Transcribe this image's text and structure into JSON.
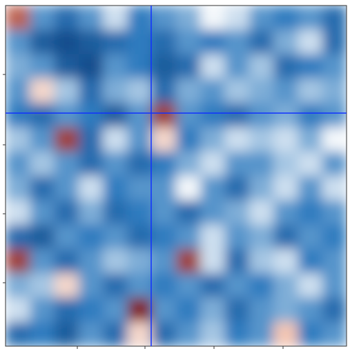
{
  "chart_data": {
    "type": "heatmap",
    "zlim": [
      0,
      1
    ],
    "colorscale": [
      "#08306b",
      "#2f7bbf",
      "#f4f8fb",
      "#f4a582",
      "#67000d"
    ],
    "z": [
      [
        0.85,
        0.3,
        0.2,
        0.3,
        0.45,
        0.25,
        0.3,
        0.35,
        0.5,
        0.45,
        0.3,
        0.25,
        0.3,
        0.2
      ],
      [
        0.3,
        0.15,
        0.1,
        0.15,
        0.2,
        0.25,
        0.2,
        0.3,
        0.25,
        0.3,
        0.2,
        0.35,
        0.45,
        0.2
      ],
      [
        0.35,
        0.3,
        0.15,
        0.1,
        0.3,
        0.25,
        0.15,
        0.2,
        0.45,
        0.3,
        0.4,
        0.2,
        0.25,
        0.3
      ],
      [
        0.3,
        0.6,
        0.4,
        0.2,
        0.35,
        0.4,
        0.2,
        0.35,
        0.3,
        0.4,
        0.35,
        0.3,
        0.4,
        0.35
      ],
      [
        0.25,
        0.2,
        0.3,
        0.25,
        0.15,
        0.3,
        0.9,
        0.3,
        0.25,
        0.2,
        0.3,
        0.35,
        0.25,
        0.3
      ],
      [
        0.4,
        0.3,
        0.9,
        0.2,
        0.45,
        0.3,
        0.6,
        0.25,
        0.35,
        0.45,
        0.4,
        0.45,
        0.35,
        0.5
      ],
      [
        0.3,
        0.4,
        0.3,
        0.2,
        0.3,
        0.2,
        0.25,
        0.35,
        0.45,
        0.3,
        0.3,
        0.4,
        0.45,
        0.3
      ],
      [
        0.35,
        0.2,
        0.3,
        0.45,
        0.25,
        0.3,
        0.3,
        0.5,
        0.3,
        0.2,
        0.35,
        0.45,
        0.3,
        0.45
      ],
      [
        0.45,
        0.3,
        0.2,
        0.35,
        0.2,
        0.25,
        0.3,
        0.2,
        0.3,
        0.35,
        0.45,
        0.3,
        0.25,
        0.3
      ],
      [
        0.2,
        0.15,
        0.3,
        0.25,
        0.3,
        0.2,
        0.25,
        0.3,
        0.45,
        0.3,
        0.35,
        0.2,
        0.3,
        0.25
      ],
      [
        0.9,
        0.3,
        0.2,
        0.3,
        0.4,
        0.35,
        0.3,
        0.9,
        0.45,
        0.2,
        0.4,
        0.45,
        0.25,
        0.3
      ],
      [
        0.35,
        0.4,
        0.6,
        0.3,
        0.2,
        0.3,
        0.25,
        0.3,
        0.2,
        0.3,
        0.25,
        0.35,
        0.45,
        0.3
      ],
      [
        0.45,
        0.3,
        0.2,
        0.25,
        0.3,
        0.95,
        0.3,
        0.25,
        0.35,
        0.2,
        0.3,
        0.35,
        0.3,
        0.2
      ],
      [
        0.2,
        0.25,
        0.15,
        0.3,
        0.2,
        0.6,
        0.2,
        0.3,
        0.4,
        0.25,
        0.3,
        0.65,
        0.25,
        0.3
      ]
    ]
  }
}
